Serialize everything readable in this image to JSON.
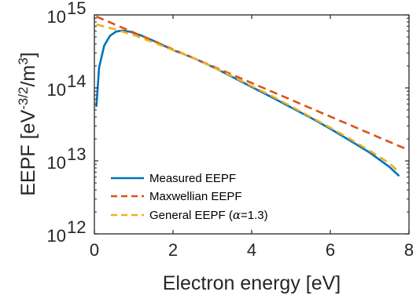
{
  "chart_data": {
    "type": "line",
    "xlabel": "Electron energy [eV]",
    "ylabel": "EEPF [eV^-3/2/m^3]",
    "xlim": [
      0,
      8
    ],
    "ylim": [
      1000000000000.0,
      1000000000000000.0
    ],
    "y_scale": "log",
    "grid": false,
    "legend_position": "bottom-left",
    "xticks": [
      0,
      2,
      4,
      6,
      8
    ],
    "yticks": [
      {
        "value": 1000000000000.0,
        "base": "10",
        "exp": "12"
      },
      {
        "value": 10000000000000.0,
        "base": "10",
        "exp": "13"
      },
      {
        "value": 100000000000000.0,
        "base": "10",
        "exp": "14"
      },
      {
        "value": 1000000000000000.0,
        "base": "10",
        "exp": "15"
      }
    ],
    "series": [
      {
        "name": "Measured EEPF",
        "color": "#0072BD",
        "style": "solid",
        "x": [
          0.05,
          0.12,
          0.25,
          0.4,
          0.55,
          0.7,
          0.9,
          1.2,
          1.6,
          2.0,
          2.5,
          3.0,
          3.5,
          4.0,
          4.5,
          5.0,
          5.5,
          6.0,
          6.5,
          7.0,
          7.5,
          7.75
        ],
        "y": [
          55000000000000.0,
          190000000000000.0,
          380000000000000.0,
          520000000000000.0,
          590000000000000.0,
          610000000000000.0,
          590000000000000.0,
          520000000000000.0,
          420000000000000.0,
          330000000000000.0,
          260000000000000.0,
          195000000000000.0,
          142000000000000.0,
          103000000000000.0,
          75000000000000.0,
          54000000000000.0,
          39000000000000.0,
          27500000000000.0,
          19000000000000.0,
          13000000000000.0,
          8300000000000.0,
          6200000000000.0
        ]
      },
      {
        "name": "Maxwellian EEPF",
        "color": "#D95319",
        "style": "dashed",
        "x": [
          0.05,
          8.0
        ],
        "y": [
          950000000000000.0,
          14000000000000.0
        ]
      },
      {
        "name": "General EEPF (α=1.3)",
        "color": "#EDB120",
        "style": "dashed",
        "x": [
          0.05,
          0.5,
          1.0,
          1.5,
          2.0,
          2.5,
          3.0,
          3.5,
          4.0,
          4.5,
          5.0,
          5.5,
          6.0,
          6.5,
          7.0,
          7.5,
          7.75
        ],
        "y": [
          740000000000000.0,
          640000000000000.0,
          530000000000000.0,
          420000000000000.0,
          330000000000000.0,
          260000000000000.0,
          195000000000000.0,
          145000000000000.0,
          106000000000000.0,
          78000000000000.0,
          56000000000000.0,
          40000000000000.0,
          28500000000000.0,
          20000000000000.0,
          13800000000000.0,
          9300000000000.0,
          7000000000000.0
        ]
      }
    ],
    "legend_labels": {
      "measured": "Measured EEPF",
      "maxwellian": "Maxwellian EEPF",
      "general_prefix": "General EEPF (",
      "general_symbol": "α",
      "general_suffix": "=1.3)"
    }
  }
}
